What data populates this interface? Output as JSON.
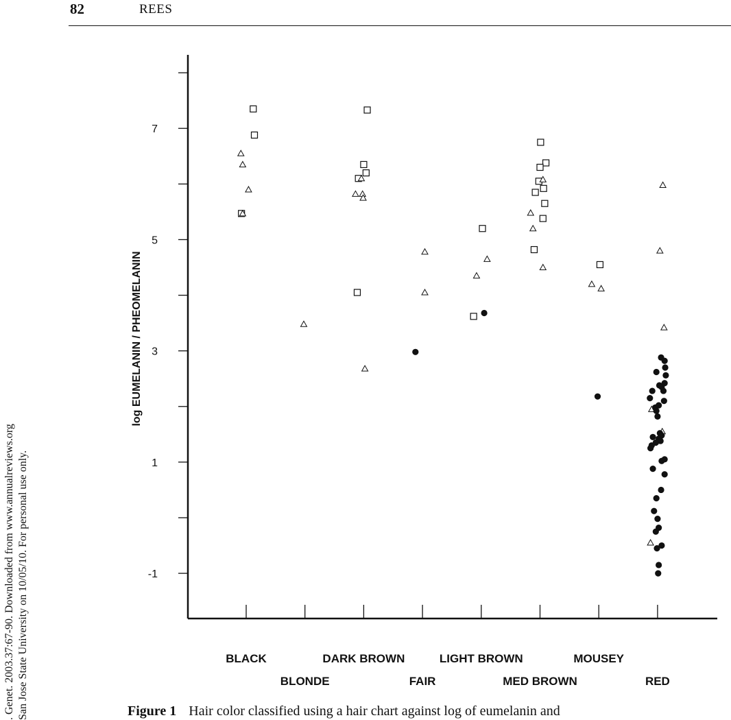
{
  "header": {
    "page_number": "82",
    "author": "REES"
  },
  "side_note": {
    "line1": ". Genet. 2003.37:67-90. Downloaded from www.annualreviews.org",
    "line2": "San Jose State University on 10/05/10. For personal use only."
  },
  "caption": {
    "label": "Figure 1",
    "text": "Hair color classified using a hair chart against log of eumelanin and"
  },
  "chart_data": {
    "type": "scatter",
    "ylabel": "log EUMELANIN / PHEOMELANIN",
    "ylim": [
      -1.8,
      8.1
    ],
    "yticks": [
      -1,
      0,
      1,
      2,
      3,
      4,
      5,
      6,
      7,
      8
    ],
    "ytick_labels": [
      "-1",
      "1",
      "3",
      "5",
      "7"
    ],
    "ytick_label_values": [
      -1,
      1,
      3,
      5,
      7
    ],
    "categories": [
      "BLACK",
      "BLONDE",
      "DARK BROWN",
      "FAIR",
      "LIGHT BROWN",
      "MED BROWN",
      "MOUSEY",
      "RED"
    ],
    "grid": false,
    "series": [
      {
        "marker": "square",
        "points": [
          {
            "category": "BLACK",
            "y": 7.35,
            "jitter": 0.12
          },
          {
            "category": "BLACK",
            "y": 6.88,
            "jitter": 0.14
          },
          {
            "category": "BLACK",
            "y": 5.47,
            "jitter": -0.08
          },
          {
            "category": "DARK BROWN",
            "y": 7.33,
            "jitter": 0.06
          },
          {
            "category": "DARK BROWN",
            "y": 6.35,
            "jitter": 0.0
          },
          {
            "category": "DARK BROWN",
            "y": 6.2,
            "jitter": 0.04
          },
          {
            "category": "DARK BROWN",
            "y": 6.1,
            "jitter": -0.09
          },
          {
            "category": "DARK BROWN",
            "y": 4.05,
            "jitter": -0.11
          },
          {
            "category": "LIGHT BROWN",
            "y": 5.2,
            "jitter": 0.02
          },
          {
            "category": "LIGHT BROWN",
            "y": 3.62,
            "jitter": -0.13
          },
          {
            "category": "MED BROWN",
            "y": 6.75,
            "jitter": 0.01
          },
          {
            "category": "MED BROWN",
            "y": 6.38,
            "jitter": 0.1
          },
          {
            "category": "MED BROWN",
            "y": 6.3,
            "jitter": 0.0
          },
          {
            "category": "MED BROWN",
            "y": 6.05,
            "jitter": -0.02
          },
          {
            "category": "MED BROWN",
            "y": 5.92,
            "jitter": 0.06
          },
          {
            "category": "MED BROWN",
            "y": 5.85,
            "jitter": -0.08
          },
          {
            "category": "MED BROWN",
            "y": 5.65,
            "jitter": 0.08
          },
          {
            "category": "MED BROWN",
            "y": 5.38,
            "jitter": 0.05
          },
          {
            "category": "MED BROWN",
            "y": 4.82,
            "jitter": -0.1
          },
          {
            "category": "MOUSEY",
            "y": 4.55,
            "jitter": 0.02
          }
        ]
      },
      {
        "marker": "triangle",
        "points": [
          {
            "category": "BLACK",
            "y": 6.55,
            "jitter": -0.09
          },
          {
            "category": "BLACK",
            "y": 6.35,
            "jitter": -0.06
          },
          {
            "category": "BLACK",
            "y": 5.9,
            "jitter": 0.04
          },
          {
            "category": "BLACK",
            "y": 5.47,
            "jitter": -0.06
          },
          {
            "category": "BLONDE",
            "y": 3.48,
            "jitter": -0.02
          },
          {
            "category": "DARK BROWN",
            "y": 6.1,
            "jitter": -0.04
          },
          {
            "category": "DARK BROWN",
            "y": 5.82,
            "jitter": -0.14
          },
          {
            "category": "DARK BROWN",
            "y": 5.82,
            "jitter": -0.02
          },
          {
            "category": "DARK BROWN",
            "y": 5.75,
            "jitter": -0.01
          },
          {
            "category": "DARK BROWN",
            "y": 2.68,
            "jitter": 0.02
          },
          {
            "category": "FAIR",
            "y": 4.78,
            "jitter": 0.04
          },
          {
            "category": "FAIR",
            "y": 4.05,
            "jitter": 0.04
          },
          {
            "category": "LIGHT BROWN",
            "y": 4.65,
            "jitter": 0.1
          },
          {
            "category": "LIGHT BROWN",
            "y": 4.35,
            "jitter": -0.08
          },
          {
            "category": "MED BROWN",
            "y": 6.08,
            "jitter": 0.05
          },
          {
            "category": "MED BROWN",
            "y": 5.48,
            "jitter": -0.16
          },
          {
            "category": "MED BROWN",
            "y": 5.2,
            "jitter": -0.12
          },
          {
            "category": "MED BROWN",
            "y": 4.5,
            "jitter": 0.05
          },
          {
            "category": "MOUSEY",
            "y": 4.2,
            "jitter": -0.12
          },
          {
            "category": "MOUSEY",
            "y": 4.12,
            "jitter": 0.04
          },
          {
            "category": "RED",
            "y": 5.98,
            "jitter": 0.09
          },
          {
            "category": "RED",
            "y": 4.8,
            "jitter": 0.04
          },
          {
            "category": "RED",
            "y": 3.42,
            "jitter": 0.11
          },
          {
            "category": "RED",
            "y": 1.95,
            "jitter": -0.1
          },
          {
            "category": "RED",
            "y": 1.55,
            "jitter": 0.08
          },
          {
            "category": "RED",
            "y": -0.45,
            "jitter": -0.12
          }
        ]
      },
      {
        "marker": "filled-circle",
        "points": [
          {
            "category": "FAIR",
            "y": 2.98,
            "jitter": -0.12
          },
          {
            "category": "LIGHT BROWN",
            "y": 3.68,
            "jitter": 0.05
          },
          {
            "category": "MOUSEY",
            "y": 2.18,
            "jitter": -0.02
          },
          {
            "category": "RED",
            "y": 2.88,
            "jitter": 0.06
          },
          {
            "category": "RED",
            "y": 2.82,
            "jitter": 0.12
          },
          {
            "category": "RED",
            "y": 2.7,
            "jitter": 0.13
          },
          {
            "category": "RED",
            "y": 2.62,
            "jitter": -0.02
          },
          {
            "category": "RED",
            "y": 2.56,
            "jitter": 0.14
          },
          {
            "category": "RED",
            "y": 2.42,
            "jitter": 0.12
          },
          {
            "category": "RED",
            "y": 2.38,
            "jitter": 0.03
          },
          {
            "category": "RED",
            "y": 2.35,
            "jitter": 0.07
          },
          {
            "category": "RED",
            "y": 2.28,
            "jitter": -0.09
          },
          {
            "category": "RED",
            "y": 2.28,
            "jitter": 0.1
          },
          {
            "category": "RED",
            "y": 2.15,
            "jitter": -0.13
          },
          {
            "category": "RED",
            "y": 2.1,
            "jitter": 0.11
          },
          {
            "category": "RED",
            "y": 2.02,
            "jitter": 0.02
          },
          {
            "category": "RED",
            "y": 1.98,
            "jitter": -0.04
          },
          {
            "category": "RED",
            "y": 1.92,
            "jitter": -0.02
          },
          {
            "category": "RED",
            "y": 1.82,
            "jitter": 0.0
          },
          {
            "category": "RED",
            "y": 1.52,
            "jitter": 0.04
          },
          {
            "category": "RED",
            "y": 1.48,
            "jitter": 0.07
          },
          {
            "category": "RED",
            "y": 1.45,
            "jitter": -0.08
          },
          {
            "category": "RED",
            "y": 1.42,
            "jitter": 0.02
          },
          {
            "category": "RED",
            "y": 1.38,
            "jitter": 0.05
          },
          {
            "category": "RED",
            "y": 1.35,
            "jitter": -0.03
          },
          {
            "category": "RED",
            "y": 1.3,
            "jitter": -0.1
          },
          {
            "category": "RED",
            "y": 1.25,
            "jitter": -0.12
          },
          {
            "category": "RED",
            "y": 1.05,
            "jitter": 0.12
          },
          {
            "category": "RED",
            "y": 1.02,
            "jitter": 0.07
          },
          {
            "category": "RED",
            "y": 0.88,
            "jitter": -0.08
          },
          {
            "category": "RED",
            "y": 0.78,
            "jitter": 0.12
          },
          {
            "category": "RED",
            "y": 0.5,
            "jitter": 0.06
          },
          {
            "category": "RED",
            "y": 0.35,
            "jitter": -0.02
          },
          {
            "category": "RED",
            "y": 0.12,
            "jitter": -0.06
          },
          {
            "category": "RED",
            "y": -0.02,
            "jitter": 0.0
          },
          {
            "category": "RED",
            "y": -0.18,
            "jitter": 0.02
          },
          {
            "category": "RED",
            "y": -0.25,
            "jitter": -0.03
          },
          {
            "category": "RED",
            "y": -0.5,
            "jitter": 0.07
          },
          {
            "category": "RED",
            "y": -0.55,
            "jitter": -0.01
          },
          {
            "category": "RED",
            "y": -0.85,
            "jitter": 0.02
          },
          {
            "category": "RED",
            "y": -1.0,
            "jitter": 0.01
          }
        ]
      }
    ]
  }
}
